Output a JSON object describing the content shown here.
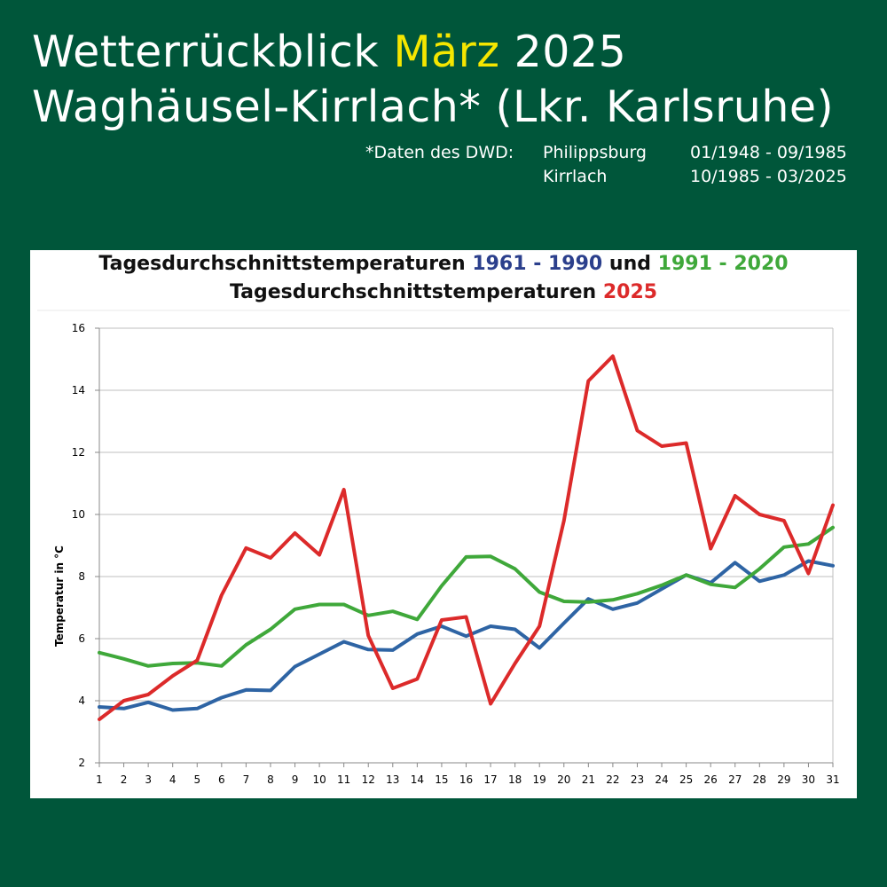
{
  "header": {
    "title_prefix": "Wetterrückblick",
    "title_month": "März",
    "title_year": "2025",
    "subtitle": "Waghäusel-Kirrlach* (Lkr. Karlsruhe)",
    "source_label": "*Daten des DWD:",
    "stations": [
      {
        "name": "Philippsburg",
        "period": "01/1948 - 09/1985"
      },
      {
        "name": "Kirrlach",
        "period": "10/1985 - 03/2025"
      }
    ]
  },
  "colors": {
    "background": "#00563a",
    "highlight": "#f5e600",
    "series_1961_1990": "#2e64a4",
    "series_1991_2020": "#3fa83a",
    "series_2025": "#dc2a2a"
  },
  "chart_title": {
    "line1_prefix": "Tagesdurchschnittstemperaturen",
    "line1_range1": "1961 - 1990",
    "line1_and": "und",
    "line1_range2": "1991 - 2020",
    "line2_prefix": "Tagesdurchschnittstemperaturen",
    "line2_year": "2025"
  },
  "chart_data": {
    "type": "line",
    "ylabel": "Temperatur in °C",
    "xlabel": "",
    "ylim": [
      2,
      16
    ],
    "yticks": [
      2,
      4,
      6,
      8,
      10,
      12,
      14,
      16
    ],
    "grid": true,
    "x": [
      1,
      2,
      3,
      4,
      5,
      6,
      7,
      8,
      9,
      10,
      11,
      12,
      13,
      14,
      15,
      16,
      17,
      18,
      19,
      20,
      21,
      22,
      23,
      24,
      25,
      26,
      27,
      28,
      29,
      30,
      31
    ],
    "series": [
      {
        "key": "1961-1990",
        "color": "#2e64a4",
        "values": [
          3.8,
          3.75,
          3.95,
          3.7,
          3.75,
          4.1,
          4.35,
          4.33,
          5.1,
          5.5,
          5.9,
          5.65,
          5.63,
          6.15,
          6.4,
          6.08,
          6.4,
          6.3,
          5.7,
          6.5,
          7.28,
          6.95,
          7.15,
          7.6,
          8.05,
          7.8,
          8.45,
          7.85,
          8.05,
          8.5,
          8.35
        ]
      },
      {
        "key": "1991-2020",
        "color": "#3fa83a",
        "values": [
          5.55,
          5.35,
          5.12,
          5.2,
          5.22,
          5.12,
          5.8,
          6.3,
          6.95,
          7.1,
          7.1,
          6.75,
          6.88,
          6.62,
          7.7,
          8.63,
          8.65,
          8.25,
          7.5,
          7.2,
          7.18,
          7.25,
          7.45,
          7.72,
          8.05,
          7.75,
          7.65,
          8.25,
          8.95,
          9.05,
          9.58
        ]
      },
      {
        "key": "2025",
        "color": "#dc2a2a",
        "values": [
          3.4,
          4.0,
          4.2,
          4.8,
          5.3,
          7.4,
          8.92,
          8.6,
          9.4,
          8.7,
          10.8,
          6.1,
          4.4,
          4.7,
          6.6,
          6.7,
          3.9,
          5.2,
          6.4,
          9.8,
          14.3,
          15.1,
          12.7,
          12.2,
          12.3,
          8.9,
          10.6,
          10.0,
          9.8,
          8.1,
          10.3
        ]
      }
    ]
  }
}
